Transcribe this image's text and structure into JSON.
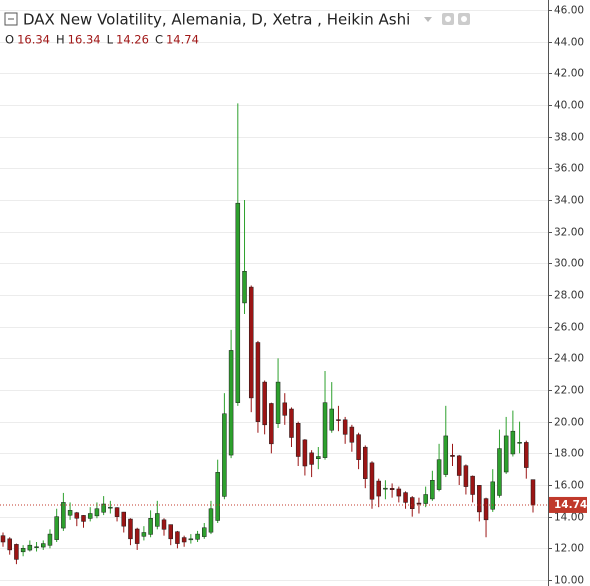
{
  "chart_data": {
    "type": "candlestick",
    "title": "DAX New Volatility, Alemania, D, Xetra , Heikin Ashi",
    "ohlc_labels": [
      "O",
      "H",
      "L",
      "C"
    ],
    "up_color": "#2da02d",
    "down_color": "#9b1515",
    "price_line_color": "#c0392b",
    "grid": true,
    "ylim": [
      10,
      46
    ],
    "yticks": [
      {
        "value": 10,
        "label": "10.00"
      },
      {
        "value": 12,
        "label": "12.00"
      },
      {
        "value": 14,
        "label": "14.00"
      },
      {
        "value": 16,
        "label": "16.00"
      },
      {
        "value": 18,
        "label": "18.00"
      },
      {
        "value": 20,
        "label": "20.00"
      },
      {
        "value": 22,
        "label": "22.00"
      },
      {
        "value": 24,
        "label": "24.00"
      },
      {
        "value": 26,
        "label": "26.00"
      },
      {
        "value": 28,
        "label": "28.00"
      },
      {
        "value": 30,
        "label": "30.00"
      },
      {
        "value": 32,
        "label": "32.00"
      },
      {
        "value": 34,
        "label": "34.00"
      },
      {
        "value": 36,
        "label": "36.00"
      },
      {
        "value": 38,
        "label": "38.00"
      },
      {
        "value": 40,
        "label": "40.00"
      },
      {
        "value": 42,
        "label": "42.00"
      },
      {
        "value": 44,
        "label": "44.00"
      },
      {
        "value": 46,
        "label": "46.00"
      }
    ],
    "open": [
      12.8,
      12.6,
      12.25,
      11.78,
      11.89,
      12.05,
      12.08,
      12.19,
      12.55,
      13.28,
      14.09,
      14.25,
      14.08,
      13.89,
      14.05,
      14.28,
      14.54,
      14.57,
      14.29,
      13.85,
      13.22,
      12.76,
      12.88,
      13.39,
      13.8,
      13.5,
      13.05,
      12.68,
      12.54,
      12.57,
      12.74,
      13.02,
      13.76,
      15.28,
      17.89,
      21.2,
      27.5,
      28.5,
      25.0,
      22.5,
      21.15,
      19.88,
      21.19,
      20.8,
      19.9,
      18.85,
      18.03,
      17.66,
      17.73,
      19.46,
      20.13,
      20.12,
      19.66,
      19.18,
      18.39,
      17.4,
      16.25,
      15.78,
      15.79,
      15.75,
      15.52,
      15.21,
      14.86,
      14.83,
      15.12,
      15.71,
      16.66,
      17.88,
      17.84,
      17.22,
      16.56,
      15.98,
      15.14,
      14.47,
      15.34,
      16.82,
      17.96,
      18.68,
      18.69,
      16.34
    ],
    "high": [
      13.0,
      12.7,
      12.3,
      12.2,
      12.5,
      12.4,
      12.5,
      13.2,
      14.5,
      15.5,
      14.9,
      14.3,
      14.1,
      14.6,
      14.9,
      15.3,
      15.0,
      14.6,
      14.3,
      13.9,
      13.3,
      13.4,
      14.4,
      15.0,
      13.9,
      13.5,
      13.1,
      12.8,
      12.9,
      13.1,
      13.6,
      15.0,
      17.6,
      21.8,
      25.8,
      40.1,
      34.0,
      28.6,
      25.1,
      22.6,
      21.2,
      24.0,
      21.8,
      20.9,
      20.0,
      18.9,
      18.2,
      18.4,
      23.2,
      22.5,
      21.0,
      20.3,
      19.8,
      19.3,
      18.5,
      17.5,
      16.4,
      16.3,
      16.1,
      15.9,
      15.6,
      15.3,
      15.2,
      15.9,
      16.9,
      18.6,
      21.0,
      18.6,
      17.9,
      17.3,
      16.6,
      16.0,
      15.2,
      17.0,
      19.5,
      20.3,
      20.7,
      20.0,
      18.8,
      16.34
    ],
    "low": [
      12.1,
      11.6,
      11.0,
      11.5,
      11.8,
      11.8,
      11.9,
      12.0,
      12.4,
      13.1,
      13.8,
      13.4,
      13.3,
      13.7,
      13.9,
      14.1,
      14.2,
      13.7,
      13.0,
      12.2,
      11.9,
      12.5,
      12.7,
      13.2,
      12.8,
      12.2,
      12.0,
      12.1,
      12.3,
      12.4,
      12.6,
      12.9,
      13.6,
      15.1,
      17.7,
      21.0,
      26.8,
      20.6,
      19.3,
      19.2,
      18.0,
      19.6,
      19.8,
      18.4,
      17.2,
      16.6,
      16.5,
      17.0,
      17.6,
      19.3,
      19.4,
      18.6,
      18.1,
      17.0,
      15.8,
      14.5,
      14.6,
      15.1,
      15.2,
      14.9,
      14.5,
      14.0,
      14.2,
      14.6,
      15.0,
      15.6,
      16.5,
      17.2,
      16.0,
      15.4,
      14.9,
      13.7,
      12.7,
      14.3,
      15.2,
      16.7,
      17.8,
      18.0,
      16.4,
      14.26
    ],
    "close": [
      12.4,
      11.9,
      11.3,
      12.0,
      12.2,
      12.1,
      12.3,
      12.9,
      14.0,
      14.9,
      14.4,
      13.9,
      13.7,
      14.2,
      14.5,
      14.8,
      14.6,
      14.0,
      13.4,
      12.6,
      12.3,
      13.0,
      13.9,
      14.2,
      13.2,
      12.6,
      12.3,
      12.4,
      12.6,
      12.9,
      13.3,
      14.5,
      16.8,
      20.5,
      24.5,
      33.8,
      29.5,
      21.5,
      20.0,
      19.8,
      18.6,
      22.5,
      20.4,
      19.0,
      17.8,
      17.2,
      17.3,
      17.8,
      21.2,
      20.8,
      20.1,
      19.2,
      18.7,
      17.6,
      16.4,
      15.1,
      15.3,
      15.8,
      15.7,
      15.3,
      14.9,
      14.5,
      14.8,
      15.4,
      16.3,
      17.6,
      19.1,
      17.8,
      16.6,
      15.9,
      15.4,
      14.3,
      13.8,
      16.2,
      18.3,
      19.1,
      19.4,
      18.7,
      17.1,
      14.74
    ]
  }
}
